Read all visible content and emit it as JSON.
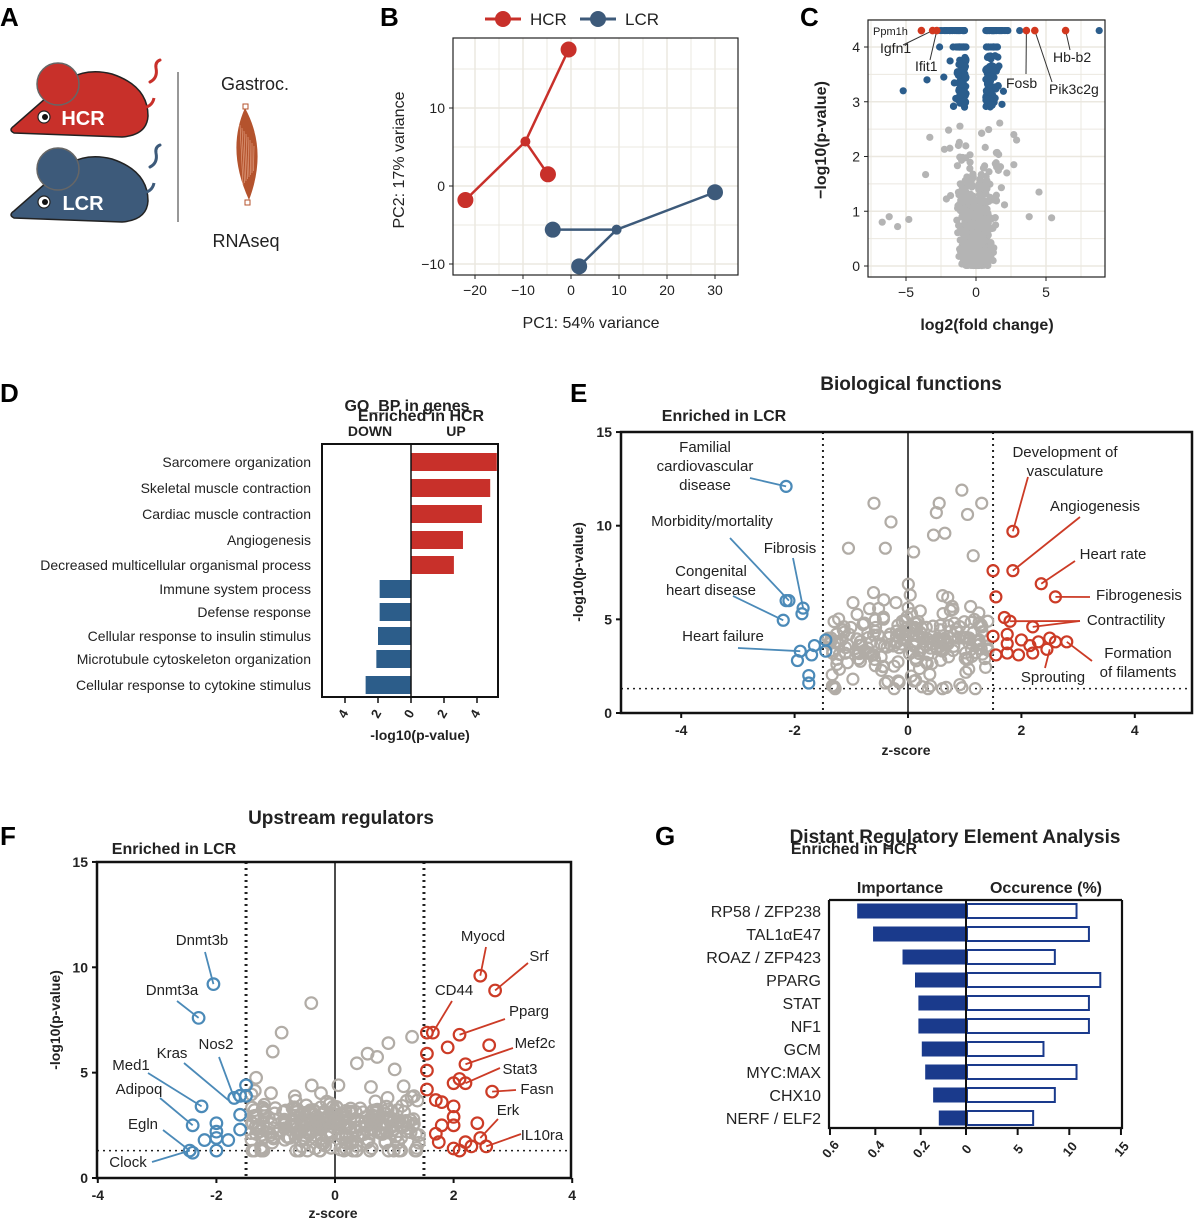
{
  "panel_letters": [
    "A",
    "B",
    "C",
    "D",
    "E",
    "F",
    "G"
  ],
  "panel_a": {
    "strain_high": "HCR",
    "strain_low": "LCR",
    "tissue": "Gastroc.",
    "assay": "RNAseq",
    "colors": {
      "high": "#c8302a",
      "low": "#3d5a7a",
      "muscle": "#b4532d"
    }
  },
  "chart_data": [
    {
      "id": "B",
      "type": "scatter",
      "xlabel": "PC1: 54% variance",
      "ylabel": "PC2: 17% variance",
      "xticks": [
        -20,
        -10,
        0,
        10,
        20,
        30
      ],
      "yticks": [
        -10,
        0,
        10
      ],
      "xlim": [
        -24.6,
        34.8
      ],
      "ylim": [
        -11.4,
        19
      ],
      "grid": true,
      "legend": "top",
      "series": [
        {
          "name": "HCR",
          "color": "#c8302a",
          "samples": [
            [
              -22,
              -1.8
            ],
            [
              -4.8,
              1.5
            ],
            [
              -0.5,
              17.5
            ]
          ],
          "centroid": [
            -9.5,
            5.7
          ]
        },
        {
          "name": "LCR",
          "color": "#3d5a7a",
          "samples": [
            [
              -3.8,
              -5.6
            ],
            [
              1.7,
              -10.3
            ],
            [
              30,
              -0.8
            ]
          ],
          "centroid": [
            9.5,
            -5.6
          ]
        }
      ]
    },
    {
      "id": "C",
      "type": "scatter",
      "xlabel": "log2(fold change)",
      "ylabel": "−log10(p-value)",
      "xticks": [
        -5,
        0,
        5
      ],
      "yticks": [
        0,
        1,
        2,
        3,
        4
      ],
      "xlim": [
        -7.7,
        9.2
      ],
      "ylim": [
        -0.2,
        4.5
      ],
      "grid": true,
      "colors": {
        "ns": "#b4b4b4",
        "sig": "#2b5d8c",
        "labeled": "#d2381f"
      },
      "significance_threshold": 2.85,
      "labeled_genes": [
        {
          "gene": "Ppm1h",
          "x": -3.9,
          "y": 4.3
        },
        {
          "gene": "Igfn1",
          "x": -3.1,
          "y": 4.3
        },
        {
          "gene": "Ifit1",
          "x": -2.8,
          "y": 4.3
        },
        {
          "gene": "Fosb",
          "x": 3.6,
          "y": 4.3
        },
        {
          "gene": "Pik3c2g",
          "x": 4.2,
          "y": 4.3
        },
        {
          "gene": "Hb-b2",
          "x": 6.4,
          "y": 4.3
        }
      ],
      "sig_outliers": [
        [
          8.8,
          4.3
        ],
        [
          -5.2,
          3.2
        ],
        [
          -3.5,
          3.4
        ],
        [
          -2.3,
          3.45
        ],
        [
          -2.6,
          4.0
        ]
      ],
      "ns_outliers": [
        [
          -6.7,
          0.8
        ],
        [
          -6.2,
          0.9
        ],
        [
          -5.6,
          0.72
        ],
        [
          -4.8,
          0.85
        ],
        [
          -3.6,
          1.67
        ],
        [
          -3.3,
          2.35
        ],
        [
          2.7,
          2.4
        ],
        [
          2.9,
          2.3
        ],
        [
          2.7,
          1.85
        ],
        [
          2.2,
          1.7
        ],
        [
          4.5,
          1.35
        ],
        [
          5.4,
          0.88
        ],
        [
          3.8,
          0.9
        ]
      ]
    },
    {
      "id": "D",
      "type": "bar",
      "orientation": "horizontal",
      "title": "GO_BP in genes",
      "group_labels": [
        "DOWN",
        "UP"
      ],
      "xlabel": "-log10(p-value)",
      "xticks": [
        "4",
        "2",
        "0",
        "2",
        "4"
      ],
      "categories": [
        "Sarcomere organization",
        "Skeletal muscle contraction",
        "Cardiac muscle contraction",
        "Angiogenesis",
        "Decreased multicellular organismal process",
        "Immune system process",
        "Defense response",
        "Cellular response to insulin stimulus",
        "Microtubule cytoskeleton organization",
        "Cellular response to cytokine stimulus"
      ],
      "values": [
        5.2,
        4.8,
        4.3,
        3.15,
        2.6,
        -1.9,
        -1.9,
        -2.0,
        -2.1,
        -2.75
      ],
      "colors": {
        "up": "#c8302a",
        "down": "#2c5d8a"
      }
    },
    {
      "id": "E",
      "type": "scatter",
      "title": "Biological functions",
      "side_labels": [
        "Enriched in LCR",
        "Enriched in HCR"
      ],
      "xlabel": "z-score",
      "ylabel": "-log10(p-value)",
      "xticks": [
        -4,
        -2,
        0,
        2,
        4
      ],
      "yticks": [
        0,
        5,
        10,
        15
      ],
      "xlim": [
        -5,
        5
      ],
      "ylim": [
        0,
        15
      ],
      "thresholds": {
        "z": 1.5,
        "p": 1.3
      },
      "colors": {
        "lcr": "#4b8ab8",
        "hcr": "#cc3b26",
        "ns": "#b1aca6"
      },
      "lcr_points": [
        [
          -2.15,
          12.1
        ],
        [
          -2.1,
          6.0
        ],
        [
          -2.15,
          6.0
        ],
        [
          -1.85,
          5.6
        ],
        [
          -1.87,
          5.3
        ],
        [
          -2.2,
          4.95
        ],
        [
          -1.9,
          3.3
        ],
        [
          -1.95,
          2.8
        ],
        [
          -1.7,
          3.1
        ],
        [
          -1.65,
          3.6
        ],
        [
          -1.45,
          3.9
        ],
        [
          -1.45,
          3.3
        ],
        [
          -1.75,
          2.0
        ],
        [
          -1.75,
          1.6
        ]
      ],
      "hcr_points": [
        [
          1.85,
          9.7
        ],
        [
          1.85,
          7.6
        ],
        [
          1.5,
          7.6
        ],
        [
          2.35,
          6.9
        ],
        [
          2.6,
          6.2
        ],
        [
          1.55,
          6.2
        ],
        [
          1.7,
          5.1
        ],
        [
          1.8,
          4.9
        ],
        [
          2.2,
          4.6
        ],
        [
          1.75,
          4.2
        ],
        [
          2.0,
          3.9
        ],
        [
          2.15,
          3.6
        ],
        [
          2.3,
          3.8
        ],
        [
          2.5,
          4.0
        ],
        [
          2.6,
          3.8
        ],
        [
          2.8,
          3.8
        ],
        [
          1.55,
          3.1
        ],
        [
          1.75,
          3.2
        ],
        [
          1.95,
          3.1
        ],
        [
          2.2,
          3.2
        ],
        [
          2.45,
          3.4
        ],
        [
          1.5,
          4.1
        ],
        [
          1.75,
          3.7
        ]
      ],
      "ns_outliers": [
        [
          -0.6,
          11.2
        ],
        [
          -0.3,
          10.2
        ],
        [
          0.95,
          11.9
        ],
        [
          0.5,
          10.7
        ],
        [
          0.55,
          11.2
        ],
        [
          1.05,
          10.6
        ],
        [
          1.3,
          11.2
        ],
        [
          0.45,
          9.5
        ],
        [
          0.65,
          9.6
        ],
        [
          -1.05,
          8.8
        ],
        [
          -0.4,
          8.8
        ],
        [
          0.1,
          8.6
        ],
        [
          1.15,
          8.4
        ],
        [
          -1.3,
          1.4
        ],
        [
          -0.4,
          1.6
        ],
        [
          0.95,
          1.35
        ],
        [
          0.25,
          1.4
        ]
      ],
      "labels": [
        {
          "lines": [
            "Familial",
            "cardiovascular",
            "disease"
          ],
          "point": [
            -2.15,
            12.1
          ]
        },
        {
          "lines": [
            "Morbidity/mortality"
          ],
          "point": [
            -2.1,
            6.0
          ]
        },
        {
          "lines": [
            "Fibrosis"
          ],
          "point": [
            -1.85,
            5.6
          ]
        },
        {
          "lines": [
            "Congenital",
            "heart disease"
          ],
          "point": [
            -2.2,
            4.95
          ]
        },
        {
          "lines": [
            "Heart failure"
          ],
          "point": [
            -1.9,
            3.3
          ]
        },
        {
          "lines": [
            "Development of",
            "vasculature"
          ],
          "point": [
            1.85,
            9.7
          ]
        },
        {
          "lines": [
            "Angiogenesis"
          ],
          "point": [
            1.85,
            7.6
          ]
        },
        {
          "lines": [
            "Heart rate"
          ],
          "point": [
            2.35,
            6.9
          ]
        },
        {
          "lines": [
            "Fibrogenesis"
          ],
          "point": [
            2.6,
            6.2
          ]
        },
        {
          "lines": [
            "Contractility"
          ],
          "point": [
            1.8,
            4.9
          ]
        },
        {
          "lines": [
            "Formation",
            "of filaments"
          ],
          "point": [
            2.8,
            3.8
          ]
        },
        {
          "lines": [
            "Sprouting"
          ],
          "point": [
            2.5,
            3.4
          ]
        }
      ]
    },
    {
      "id": "F",
      "type": "scatter",
      "title": "Upstream regulators",
      "side_labels": [
        "Enriched in LCR",
        "Enriched in HCR"
      ],
      "xlabel": "z-score",
      "ylabel": "-log10(p-value)",
      "xticks": [
        -4,
        -2,
        0,
        2,
        4
      ],
      "yticks": [
        0,
        5,
        10,
        15
      ],
      "xlim": [
        -4,
        4
      ],
      "ylim": [
        0,
        15
      ],
      "thresholds": {
        "z": 1.5,
        "p": 1.3
      },
      "colors": {
        "lcr": "#4b8ab8",
        "hcr": "#cc3b26",
        "ns": "#b1aca6"
      },
      "lcr_points": [
        [
          -2.05,
          9.2
        ],
        [
          -2.3,
          7.6
        ],
        [
          -1.7,
          3.8
        ],
        [
          -1.6,
          3.9
        ],
        [
          -1.5,
          3.9
        ],
        [
          -1.5,
          4.4
        ],
        [
          -2.25,
          3.4
        ],
        [
          -2.4,
          2.5
        ],
        [
          -2.45,
          1.3
        ],
        [
          -2.4,
          1.2
        ],
        [
          -2.0,
          2.6
        ],
        [
          -2.0,
          2.2
        ],
        [
          -2.0,
          1.9
        ],
        [
          -2.2,
          1.8
        ],
        [
          -1.8,
          1.8
        ],
        [
          -1.6,
          2.3
        ],
        [
          -1.6,
          3.0
        ],
        [
          -2.0,
          1.3
        ]
      ],
      "hcr_points": [
        [
          2.45,
          9.6
        ],
        [
          2.7,
          8.9
        ],
        [
          1.55,
          6.9
        ],
        [
          1.65,
          6.9
        ],
        [
          2.1,
          6.8
        ],
        [
          2.2,
          5.4
        ],
        [
          2.6,
          6.3
        ],
        [
          1.9,
          6.2
        ],
        [
          2.1,
          4.7
        ],
        [
          2.2,
          4.5
        ],
        [
          2.65,
          4.1
        ],
        [
          2.45,
          1.9
        ],
        [
          2.55,
          1.5
        ],
        [
          1.55,
          5.9
        ],
        [
          1.55,
          5.1
        ],
        [
          1.55,
          4.2
        ],
        [
          1.7,
          3.7
        ],
        [
          1.8,
          3.6
        ],
        [
          2.0,
          4.5
        ],
        [
          2.0,
          3.4
        ],
        [
          2.0,
          2.9
        ],
        [
          2.0,
          2.5
        ],
        [
          1.8,
          2.5
        ],
        [
          1.7,
          2.1
        ],
        [
          1.75,
          1.7
        ],
        [
          2.2,
          1.7
        ],
        [
          2.0,
          1.4
        ],
        [
          2.3,
          1.5
        ],
        [
          2.4,
          2.6
        ],
        [
          2.1,
          1.3
        ]
      ],
      "ns_outliers": [
        [
          -0.4,
          8.3
        ],
        [
          -0.9,
          6.9
        ],
        [
          -1.05,
          6.0
        ],
        [
          1.3,
          6.7
        ],
        [
          0.9,
          6.4
        ],
        [
          0.55,
          5.9
        ]
      ],
      "labels": [
        {
          "text": "Dnmt3b",
          "point": [
            -2.05,
            9.2
          ]
        },
        {
          "text": "Dnmt3a",
          "point": [
            -2.3,
            7.6
          ]
        },
        {
          "text": "Nos2",
          "point": [
            -1.7,
            3.8
          ]
        },
        {
          "text": "Kras",
          "point": [
            -1.8,
            3.7
          ]
        },
        {
          "text": "Med1",
          "point": [
            -2.25,
            3.4
          ]
        },
        {
          "text": "Adipoq",
          "point": [
            -2.4,
            2.5
          ]
        },
        {
          "text": "Egln",
          "point": [
            -2.45,
            1.3
          ]
        },
        {
          "text": "Clock",
          "point": [
            -2.45,
            1.3
          ]
        },
        {
          "text": "Myocd",
          "point": [
            2.45,
            9.6
          ]
        },
        {
          "text": "Srf",
          "point": [
            2.7,
            8.9
          ]
        },
        {
          "text": "CD44",
          "point": [
            1.65,
            6.9
          ]
        },
        {
          "text": "Pparg",
          "point": [
            2.1,
            6.8
          ]
        },
        {
          "text": "Mef2c",
          "point": [
            2.2,
            5.4
          ]
        },
        {
          "text": "Stat3",
          "point": [
            2.2,
            4.5
          ]
        },
        {
          "text": "Fasn",
          "point": [
            2.65,
            4.1
          ]
        },
        {
          "text": "Erk",
          "point": [
            2.45,
            1.9
          ]
        },
        {
          "text": "IL10ra",
          "point": [
            2.55,
            1.5
          ]
        }
      ]
    },
    {
      "id": "G",
      "type": "bar",
      "orientation": "horizontal",
      "title": "Distant Regulatory Element Analysis",
      "group_labels": [
        "Importance",
        "Occurence (%)"
      ],
      "left_ticks": [
        "0.6",
        "0.4",
        "0.2",
        "0"
      ],
      "right_ticks": [
        "5",
        "10",
        "15"
      ],
      "categories": [
        "RP58 / ZFP238",
        "TAL1αE47",
        "ROAZ / ZFP423",
        "PPARG",
        "STAT",
        "NF1",
        "GCM",
        "MYC:MAX",
        "CHX10",
        "NERF / ELF2"
      ],
      "series": [
        {
          "name": "Importance",
          "values": [
            0.48,
            0.41,
            0.28,
            0.225,
            0.21,
            0.21,
            0.195,
            0.18,
            0.145,
            0.12
          ],
          "xlim": [
            0,
            0.6
          ]
        },
        {
          "name": "Occurence (%)",
          "values": [
            10.7,
            11.9,
            8.6,
            13.0,
            11.9,
            11.9,
            7.5,
            10.7,
            8.6,
            6.5
          ],
          "xlim": [
            0,
            15
          ]
        }
      ],
      "color": "#1a3a8c"
    }
  ]
}
